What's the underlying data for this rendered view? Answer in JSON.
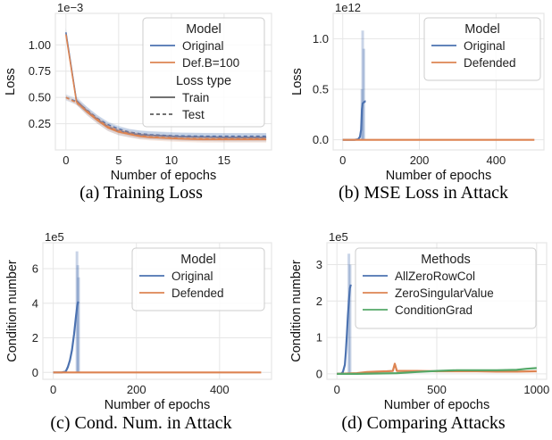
{
  "colors": {
    "blue": "#4c72b0",
    "orange": "#dd8452",
    "green": "#55a868",
    "grid": "#e6e6e6",
    "axis": "#333333"
  },
  "chart_data": [
    {
      "type": "line",
      "caption": "(a)  Training Loss",
      "xlabel": "Number of epochs",
      "ylabel": "Loss",
      "multiplier": "1e−3",
      "xlim": [
        -1,
        19.5
      ],
      "ylim": [
        0,
        1.3
      ],
      "xticks": [
        0,
        5,
        10,
        15
      ],
      "yticks": [
        0.25,
        0.5,
        0.75,
        1.0
      ],
      "ytick_labels": [
        "0.25",
        "0.50",
        "0.75",
        "1.00"
      ],
      "grid": true,
      "legend": {
        "placement": "top-right",
        "title": "Model",
        "items": [
          "Original",
          "Def.B=100"
        ],
        "title2": "Loss type",
        "items2": [
          "Train",
          "Test"
        ]
      },
      "series": [
        {
          "name": "Original",
          "style": "Train",
          "color": "blue",
          "x": [
            0,
            1,
            2,
            3,
            4,
            5,
            6,
            7,
            8,
            9,
            10,
            11,
            12,
            13,
            14,
            15,
            16,
            17,
            18,
            19
          ],
          "y": [
            1.12,
            0.47,
            0.37,
            0.29,
            0.22,
            0.18,
            0.16,
            0.145,
            0.14,
            0.135,
            0.13,
            0.127,
            0.125,
            0.123,
            0.122,
            0.12,
            0.12,
            0.12,
            0.12,
            0.12
          ],
          "band": 0.04
        },
        {
          "name": "Original",
          "style": "Test",
          "color": "blue",
          "x": [
            0,
            1,
            2,
            3,
            4,
            5,
            6,
            7,
            8,
            9,
            10,
            11,
            12,
            13,
            14,
            15,
            16,
            17,
            18,
            19
          ],
          "y": [
            0.5,
            0.46,
            0.38,
            0.3,
            0.24,
            0.2,
            0.17,
            0.155,
            0.145,
            0.14,
            0.135,
            0.133,
            0.132,
            0.131,
            0.13,
            0.13,
            0.13,
            0.13,
            0.13,
            0.13
          ],
          "band": 0.03
        },
        {
          "name": "Def.B=100",
          "style": "Train",
          "color": "orange",
          "x": [
            0,
            1,
            2,
            3,
            4,
            5,
            6,
            7,
            8,
            9,
            10,
            11,
            12,
            13,
            14,
            15,
            16,
            17,
            18,
            19
          ],
          "y": [
            1.1,
            0.46,
            0.36,
            0.28,
            0.21,
            0.17,
            0.15,
            0.13,
            0.12,
            0.115,
            0.11,
            0.105,
            0.103,
            0.1,
            0.1,
            0.1,
            0.1,
            0.1,
            0.1,
            0.1
          ],
          "band": 0.03
        },
        {
          "name": "Def.B=100",
          "style": "Test",
          "color": "orange",
          "x": [
            0,
            1,
            2,
            3,
            4,
            5,
            6,
            7,
            8,
            9,
            10,
            11,
            12,
            13,
            14,
            15,
            16,
            17,
            18,
            19
          ],
          "y": [
            0.5,
            0.45,
            0.37,
            0.29,
            0.22,
            0.18,
            0.155,
            0.135,
            0.125,
            0.12,
            0.115,
            0.11,
            0.108,
            0.105,
            0.105,
            0.105,
            0.105,
            0.105,
            0.105,
            0.105
          ],
          "band": 0.02
        }
      ]
    },
    {
      "type": "line",
      "caption": "(b)  MSE Loss in Attack",
      "xlabel": "Number of epochs",
      "ylabel": "Loss",
      "multiplier": "1e12",
      "xlim": [
        -25,
        525
      ],
      "ylim": [
        -0.1,
        1.25
      ],
      "xticks": [
        0,
        200,
        400
      ],
      "yticks": [
        0.0,
        0.5,
        1.0
      ],
      "ytick_labels": [
        "0.0",
        "0.5",
        "1.0"
      ],
      "grid": true,
      "legend": {
        "placement": "top-right",
        "title": "Model",
        "items": [
          "Original",
          "Defended"
        ]
      },
      "series": [
        {
          "name": "Original",
          "color": "blue",
          "x": [
            0,
            10,
            20,
            30,
            40,
            45,
            48,
            50,
            52,
            55,
            58,
            60
          ],
          "y": [
            0,
            0,
            0,
            0,
            0.005,
            0.03,
            0.1,
            0.3,
            0.36,
            0.37,
            0.38,
            0.38
          ],
          "spikes": [
            {
              "x": 50,
              "y": 0.5
            },
            {
              "x": 52,
              "y": 1.08
            },
            {
              "x": 55,
              "y": 0.9
            }
          ]
        },
        {
          "name": "Defended",
          "color": "orange",
          "x": [
            0,
            500
          ],
          "y": [
            0,
            0
          ]
        }
      ]
    },
    {
      "type": "line",
      "caption": "(c)  Cond. Num. in Attack",
      "xlabel": "Number of epochs",
      "ylabel": "Condition number",
      "multiplier": "1e5",
      "xlim": [
        -25,
        525
      ],
      "ylim": [
        -0.4,
        7.5
      ],
      "xticks": [
        0,
        200,
        400
      ],
      "yticks": [
        0,
        2,
        4,
        6
      ],
      "ytick_labels": [
        "0",
        "2",
        "4",
        "6"
      ],
      "grid": true,
      "legend": {
        "placement": "top-right",
        "title": "Model",
        "items": [
          "Original",
          "Defended"
        ]
      },
      "series": [
        {
          "name": "Original",
          "color": "blue",
          "x": [
            0,
            20,
            30,
            35,
            40,
            45,
            50,
            55,
            58,
            60
          ],
          "y": [
            0,
            0,
            0.05,
            0.3,
            0.7,
            1.3,
            2.2,
            3.3,
            3.9,
            4.1
          ],
          "spikes": [
            {
              "x": 57,
              "y": 7.0
            },
            {
              "x": 59,
              "y": 6.2
            },
            {
              "x": 61,
              "y": 5.5
            }
          ]
        },
        {
          "name": "Defended",
          "color": "orange",
          "x": [
            0,
            500
          ],
          "y": [
            0,
            0
          ]
        }
      ]
    },
    {
      "type": "line",
      "caption": "(d)  Comparing Attacks",
      "xlabel": "Number of epochs",
      "ylabel": "Condition number",
      "multiplier": "1e5",
      "xlim": [
        -50,
        1050
      ],
      "ylim": [
        -0.15,
        3.6
      ],
      "xticks": [
        0,
        500,
        1000
      ],
      "yticks": [
        0,
        1,
        2,
        3
      ],
      "ytick_labels": [
        "0",
        "1",
        "2",
        "3"
      ],
      "grid": true,
      "legend": {
        "placement": "top-right",
        "title": "Methods",
        "items": [
          "AllZeroRowCol",
          "ZeroSingularValue",
          "ConditionGrad"
        ]
      },
      "series": [
        {
          "name": "AllZeroRowCol",
          "color": "blue",
          "x": [
            0,
            20,
            30,
            40,
            45,
            50,
            55,
            60,
            65,
            70
          ],
          "y": [
            0,
            0,
            0.05,
            0.25,
            0.6,
            1.1,
            1.6,
            2.0,
            2.35,
            2.45
          ],
          "spikes": [
            {
              "x": 60,
              "y": 3.3
            },
            {
              "x": 66,
              "y": 3.0
            }
          ]
        },
        {
          "name": "ZeroSingularValue",
          "color": "orange",
          "x": [
            0,
            100,
            150,
            200,
            250,
            280,
            290,
            300,
            350,
            400,
            500,
            600,
            700,
            800,
            900,
            1000
          ],
          "y": [
            0,
            0.02,
            0.05,
            0.06,
            0.07,
            0.08,
            0.28,
            0.08,
            0.08,
            0.08,
            0.07,
            0.07,
            0.07,
            0.06,
            0.06,
            0.07
          ]
        },
        {
          "name": "ConditionGrad",
          "color": "green",
          "x": [
            0,
            100,
            200,
            300,
            400,
            500,
            600,
            700,
            800,
            900,
            950,
            1000
          ],
          "y": [
            0,
            0,
            0.01,
            0.02,
            0.05,
            0.08,
            0.1,
            0.1,
            0.1,
            0.11,
            0.14,
            0.16
          ]
        }
      ]
    }
  ]
}
